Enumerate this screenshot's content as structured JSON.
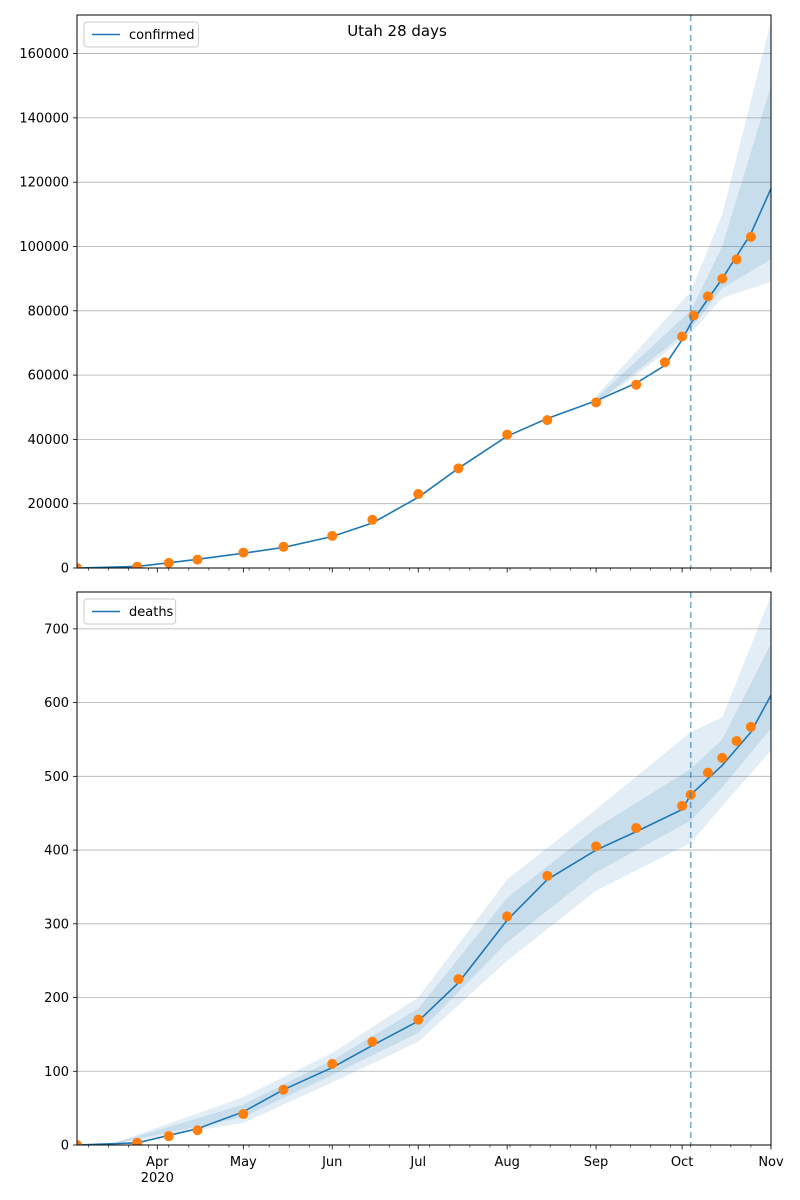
{
  "figure": {
    "title": "Utah 28 days"
  },
  "chart_data": [
    {
      "type": "line",
      "title": "Utah 28 days",
      "xlabel": "",
      "ylabel": "",
      "x_range": [
        "2020-03-04",
        "2020-11-01"
      ],
      "ylim": [
        0,
        172000
      ],
      "yticks": [
        0,
        20000,
        40000,
        60000,
        80000,
        100000,
        120000,
        140000,
        160000
      ],
      "grid": "horizontal",
      "legend": {
        "placement": "upper-left",
        "entries": [
          "confirmed"
        ]
      },
      "forecast_start": "2020-10-04",
      "colors": {
        "model": "#1f77b4",
        "observed": "#ff7f0e",
        "band": "#1f77b4"
      },
      "series": [
        {
          "name": "confirmed",
          "style": "line",
          "points": [
            [
              "2020-03-04",
              0
            ],
            [
              "2020-03-25",
              500
            ],
            [
              "2020-04-05",
              1600
            ],
            [
              "2020-04-15",
              2700
            ],
            [
              "2020-05-01",
              4600
            ],
            [
              "2020-05-15",
              6400
            ],
            [
              "2020-06-01",
              9800
            ],
            [
              "2020-06-15",
              14000
            ],
            [
              "2020-07-01",
              22000
            ],
            [
              "2020-07-15",
              31000
            ],
            [
              "2020-08-01",
              41000
            ],
            [
              "2020-08-15",
              46500
            ],
            [
              "2020-09-01",
              52000
            ],
            [
              "2020-09-15",
              57500
            ],
            [
              "2020-09-25",
              63000
            ],
            [
              "2020-10-01",
              71000
            ],
            [
              "2020-10-04",
              76000
            ],
            [
              "2020-10-15",
              90000
            ],
            [
              "2020-10-25",
              104000
            ],
            [
              "2020-11-01",
              118000
            ]
          ]
        },
        {
          "name": "observed",
          "style": "markers",
          "points": [
            [
              "2020-03-04",
              0
            ],
            [
              "2020-03-25",
              400
            ],
            [
              "2020-04-05",
              1600
            ],
            [
              "2020-04-15",
              2600
            ],
            [
              "2020-05-01",
              4800
            ],
            [
              "2020-05-15",
              6600
            ],
            [
              "2020-06-01",
              10000
            ],
            [
              "2020-06-15",
              15000
            ],
            [
              "2020-07-01",
              23000
            ],
            [
              "2020-07-15",
              31000
            ],
            [
              "2020-08-01",
              41500
            ],
            [
              "2020-08-15",
              46000
            ],
            [
              "2020-09-01",
              51500
            ],
            [
              "2020-09-15",
              57000
            ],
            [
              "2020-09-25",
              64000
            ],
            [
              "2020-10-01",
              72000
            ],
            [
              "2020-10-05",
              78500
            ],
            [
              "2020-10-10",
              84500
            ],
            [
              "2020-10-15",
              90000
            ],
            [
              "2020-10-20",
              96000
            ],
            [
              "2020-10-25",
              103000
            ]
          ]
        }
      ],
      "bands": [
        {
          "lower": [
            [
              "2020-09-01",
              50500
            ],
            [
              "2020-10-04",
              73000
            ],
            [
              "2020-10-15",
              84000
            ],
            [
              "2020-11-01",
              89000
            ]
          ],
          "upper": [
            [
              "2020-09-01",
              53500
            ],
            [
              "2020-10-04",
              86000
            ],
            [
              "2020-10-15",
              110000
            ],
            [
              "2020-11-01",
              170000
            ]
          ]
        },
        {
          "lower": [
            [
              "2020-09-01",
              51200
            ],
            [
              "2020-10-04",
              74500
            ],
            [
              "2020-10-15",
              87000
            ],
            [
              "2020-11-01",
              96000
            ]
          ],
          "upper": [
            [
              "2020-09-01",
              52800
            ],
            [
              "2020-10-04",
              80000
            ],
            [
              "2020-10-15",
              100000
            ],
            [
              "2020-11-01",
              150000
            ]
          ]
        }
      ]
    },
    {
      "type": "line",
      "title": "",
      "xlabel": "",
      "ylabel": "",
      "x_range": [
        "2020-03-04",
        "2020-11-01"
      ],
      "ylim": [
        0,
        750
      ],
      "yticks": [
        0,
        100,
        200,
        300,
        400,
        500,
        600,
        700
      ],
      "xticks": [
        {
          "date": "2020-04-01",
          "label": "Apr"
        },
        {
          "date": "2020-05-01",
          "label": "May"
        },
        {
          "date": "2020-06-01",
          "label": "Jun"
        },
        {
          "date": "2020-07-01",
          "label": "Jul"
        },
        {
          "date": "2020-08-01",
          "label": "Aug"
        },
        {
          "date": "2020-09-01",
          "label": "Sep"
        },
        {
          "date": "2020-10-01",
          "label": "Oct"
        },
        {
          "date": "2020-11-01",
          "label": "Nov"
        }
      ],
      "year_label": "2020",
      "grid": "horizontal",
      "legend": {
        "placement": "upper-left",
        "entries": [
          "deaths"
        ]
      },
      "forecast_start": "2020-10-04",
      "colors": {
        "model": "#1f77b4",
        "observed": "#ff7f0e",
        "band": "#1f77b4"
      },
      "series": [
        {
          "name": "deaths",
          "style": "line",
          "points": [
            [
              "2020-03-04",
              0
            ],
            [
              "2020-03-25",
              3
            ],
            [
              "2020-04-05",
              13
            ],
            [
              "2020-04-15",
              22
            ],
            [
              "2020-05-01",
              45
            ],
            [
              "2020-05-15",
              75
            ],
            [
              "2020-06-01",
              105
            ],
            [
              "2020-06-15",
              135
            ],
            [
              "2020-07-01",
              168
            ],
            [
              "2020-07-15",
              220
            ],
            [
              "2020-08-01",
              305
            ],
            [
              "2020-08-15",
              360
            ],
            [
              "2020-09-01",
              400
            ],
            [
              "2020-09-15",
              425
            ],
            [
              "2020-10-01",
              455
            ],
            [
              "2020-10-04",
              475
            ],
            [
              "2020-10-15",
              515
            ],
            [
              "2020-10-25",
              560
            ],
            [
              "2020-11-01",
              610
            ]
          ]
        },
        {
          "name": "observed",
          "style": "markers",
          "points": [
            [
              "2020-03-04",
              0
            ],
            [
              "2020-03-25",
              3
            ],
            [
              "2020-04-05",
              12
            ],
            [
              "2020-04-15",
              20
            ],
            [
              "2020-05-01",
              42
            ],
            [
              "2020-05-15",
              75
            ],
            [
              "2020-06-01",
              110
            ],
            [
              "2020-06-15",
              140
            ],
            [
              "2020-07-01",
              170
            ],
            [
              "2020-07-15",
              225
            ],
            [
              "2020-08-01",
              310
            ],
            [
              "2020-08-15",
              365
            ],
            [
              "2020-09-01",
              405
            ],
            [
              "2020-09-15",
              430
            ],
            [
              "2020-10-01",
              460
            ],
            [
              "2020-10-04",
              475
            ],
            [
              "2020-10-10",
              505
            ],
            [
              "2020-10-15",
              525
            ],
            [
              "2020-10-20",
              548
            ],
            [
              "2020-10-25",
              567
            ]
          ]
        }
      ],
      "bands": [
        {
          "lower": [
            [
              "2020-03-15",
              0
            ],
            [
              "2020-05-01",
              30
            ],
            [
              "2020-06-01",
              85
            ],
            [
              "2020-07-01",
              140
            ],
            [
              "2020-08-01",
              250
            ],
            [
              "2020-09-01",
              345
            ],
            [
              "2020-10-04",
              410
            ],
            [
              "2020-10-15",
              460
            ],
            [
              "2020-11-01",
              535
            ]
          ],
          "upper": [
            [
              "2020-03-15",
              0
            ],
            [
              "2020-05-01",
              65
            ],
            [
              "2020-06-01",
              125
            ],
            [
              "2020-07-01",
              200
            ],
            [
              "2020-08-01",
              360
            ],
            [
              "2020-09-01",
              455
            ],
            [
              "2020-10-04",
              560
            ],
            [
              "2020-10-15",
              580
            ],
            [
              "2020-11-01",
              745
            ]
          ]
        },
        {
          "lower": [
            [
              "2020-03-15",
              0
            ],
            [
              "2020-05-01",
              38
            ],
            [
              "2020-06-01",
              95
            ],
            [
              "2020-07-01",
              152
            ],
            [
              "2020-08-01",
              275
            ],
            [
              "2020-09-01",
              370
            ],
            [
              "2020-10-04",
              440
            ],
            [
              "2020-10-15",
              485
            ],
            [
              "2020-11-01",
              565
            ]
          ],
          "upper": [
            [
              "2020-03-15",
              0
            ],
            [
              "2020-05-01",
              55
            ],
            [
              "2020-06-01",
              115
            ],
            [
              "2020-07-01",
              185
            ],
            [
              "2020-08-01",
              335
            ],
            [
              "2020-09-01",
              430
            ],
            [
              "2020-10-04",
              510
            ],
            [
              "2020-10-15",
              550
            ],
            [
              "2020-11-01",
              680
            ]
          ]
        }
      ]
    }
  ]
}
